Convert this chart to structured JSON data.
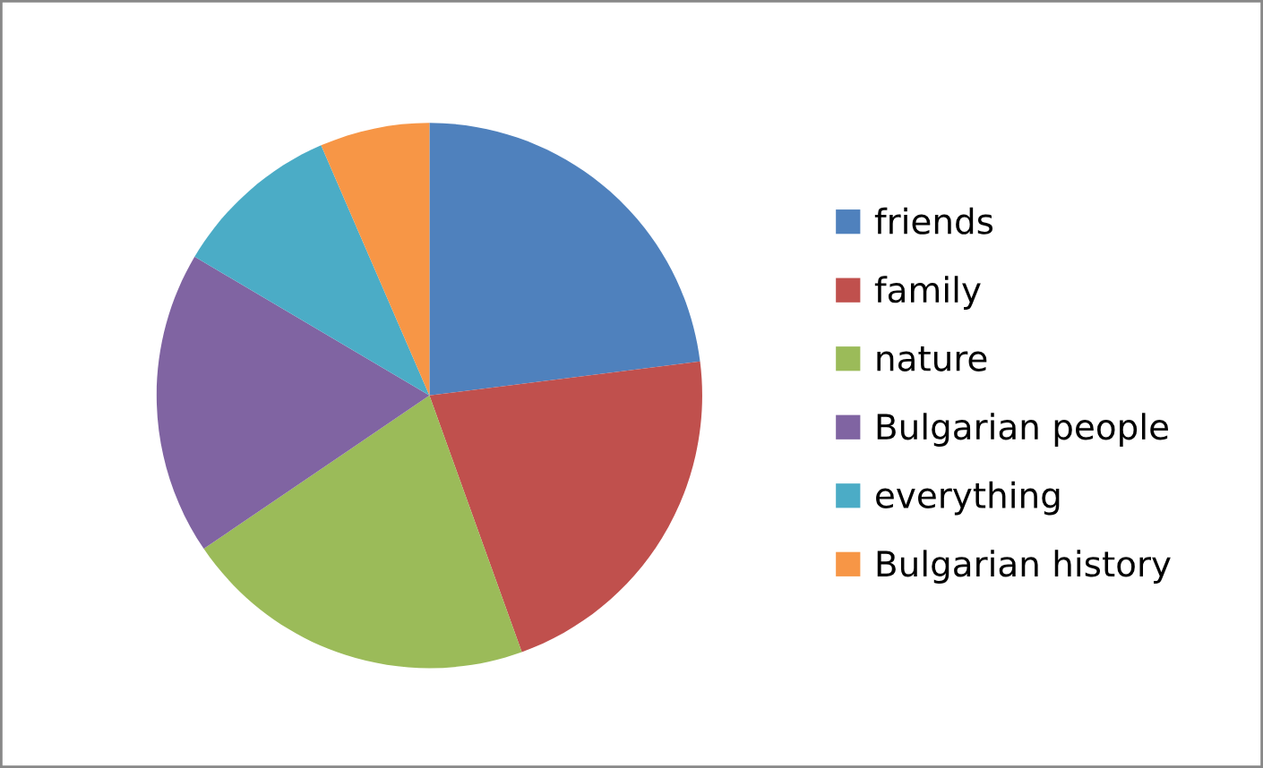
{
  "chart_data": {
    "type": "pie",
    "categories": [
      "friends",
      "family",
      "nature",
      "Bulgarian people",
      "everything",
      "Bulgarian history"
    ],
    "values": [
      23,
      21.5,
      21,
      18,
      10,
      6.5
    ],
    "colors": [
      "#4f81bd",
      "#c0504d",
      "#9bbb59",
      "#8064a2",
      "#4bacc6",
      "#f79646"
    ],
    "legend": "right"
  }
}
